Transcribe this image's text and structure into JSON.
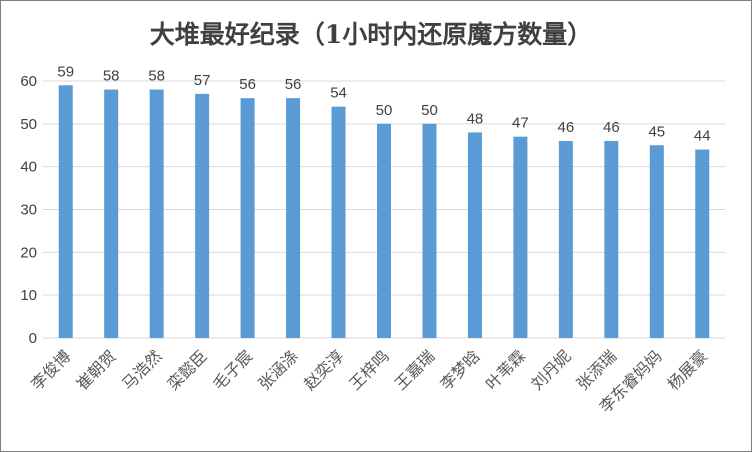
{
  "chart_data": {
    "type": "bar",
    "title": "大堆最好纪录（1小时内还原魔方数量）",
    "categories": [
      "李俊博",
      "崔朝贺",
      "马浩然",
      "栾懿臣",
      "毛子宸",
      "张涵涤",
      "赵奕淳",
      "王梓鸣",
      "王嘉瑞",
      "李梦晗",
      "叶苇霖",
      "刘丹妮",
      "张添瑞",
      "李东睿妈妈",
      "杨展豪"
    ],
    "values": [
      59,
      58,
      58,
      57,
      56,
      56,
      54,
      50,
      50,
      48,
      47,
      46,
      46,
      45,
      44
    ],
    "ylim": [
      0,
      60
    ],
    "yticks": [
      0,
      10,
      20,
      30,
      40,
      50,
      60
    ],
    "grid": true,
    "legend": "none",
    "bar_color": "#5b9bd5",
    "grid_color": "#d9d9d9"
  }
}
